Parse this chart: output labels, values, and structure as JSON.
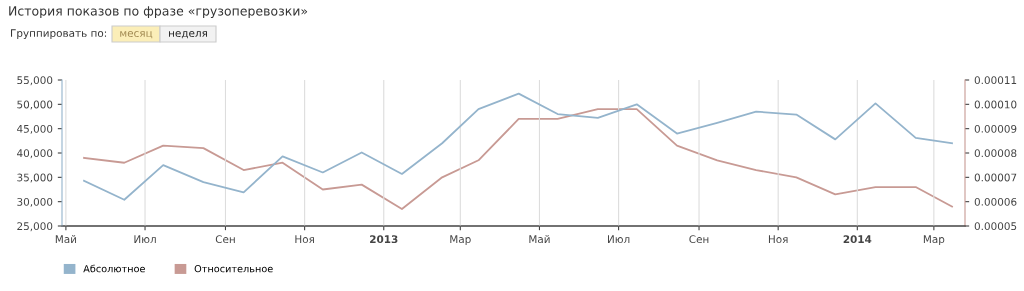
{
  "chart_data": {
    "type": "line",
    "title": "История показов по фразе «грузоперевозки»",
    "annotations": [
      "Группировать по:",
      "месяц",
      "неделя"
    ],
    "x": [
      "2012-05-15",
      "2012-06-15",
      "2012-07-15",
      "2012-08-15",
      "2012-09-15",
      "2012-10-15",
      "2012-11-15",
      "2012-12-15",
      "2013-01-15",
      "2013-02-15",
      "2013-03-15",
      "2013-04-15",
      "2013-05-15",
      "2013-06-15",
      "2013-07-15",
      "2013-08-15",
      "2013-09-15",
      "2013-10-15",
      "2013-11-15",
      "2013-12-15",
      "2014-01-15",
      "2014-02-15",
      "2014-03-15"
    ],
    "series": [
      {
        "name": "Абсолютное",
        "color": "#94b4cc",
        "values": [
          34300,
          30400,
          37500,
          34000,
          31900,
          39300,
          36000,
          40100,
          35700,
          42000,
          49000,
          52200,
          48000,
          47200,
          50000,
          44000,
          46200,
          48500,
          47900,
          42800,
          50200,
          43100,
          42000
        ]
      },
      {
        "name": "Относительное",
        "color": "#c89a94",
        "axis": "y2",
        "values": [
          7.8e-05,
          7.6e-05,
          8.3e-05,
          8.2e-05,
          7.3e-05,
          7.6e-05,
          6.5e-05,
          6.7e-05,
          5.7e-05,
          7e-05,
          7.7e-05,
          9.4e-05,
          9.4e-05,
          9.8e-05,
          9.8e-05,
          8.3e-05,
          7.7e-05,
          7.3e-05,
          7e-05,
          6.3e-05,
          6.6e-05,
          6.6e-05,
          5.8e-05
        ]
      }
    ],
    "xlim": [
      "2012-04-28",
      "2014-03-25"
    ],
    "xticks": [
      {
        "value": "2012-05-01",
        "label": "Май"
      },
      {
        "value": "2012-07-01",
        "label": "Июл"
      },
      {
        "value": "2012-09-01",
        "label": "Сен"
      },
      {
        "value": "2012-11-01",
        "label": "Ноя"
      },
      {
        "value": "2013-01-01",
        "label": "2013"
      },
      {
        "value": "2013-03-01",
        "label": "Мар"
      },
      {
        "value": "2013-05-01",
        "label": "Май"
      },
      {
        "value": "2013-07-01",
        "label": "Июл"
      },
      {
        "value": "2013-09-01",
        "label": "Сен"
      },
      {
        "value": "2013-11-01",
        "label": "Ноя"
      },
      {
        "value": "2014-01-01",
        "label": "2014"
      },
      {
        "value": "2014-03-01",
        "label": "Мар"
      }
    ],
    "ylim": [
      25000,
      55000
    ],
    "yticks": [
      {
        "value": 25000,
        "label": "25,000"
      },
      {
        "value": 30000,
        "label": "30,000"
      },
      {
        "value": 35000,
        "label": "35,000"
      },
      {
        "value": 40000,
        "label": "40,000"
      },
      {
        "value": 45000,
        "label": "45,000"
      },
      {
        "value": 50000,
        "label": "50,000"
      },
      {
        "value": 55000,
        "label": "55,000"
      }
    ],
    "y2lim": [
      5e-05,
      0.00011
    ],
    "y2ticks": [
      {
        "value": 5e-05,
        "label": "0.00005"
      },
      {
        "value": 6e-05,
        "label": "0.00006"
      },
      {
        "value": 7e-05,
        "label": "0.00007"
      },
      {
        "value": 8e-05,
        "label": "0.00008"
      },
      {
        "value": 9e-05,
        "label": "0.00009"
      },
      {
        "value": 0.0001,
        "label": "0.00010"
      },
      {
        "value": 0.00011,
        "label": "0.00011"
      }
    ],
    "grid": "x",
    "legend": "bottom left",
    "marker": "none",
    "line_style": "solid"
  }
}
